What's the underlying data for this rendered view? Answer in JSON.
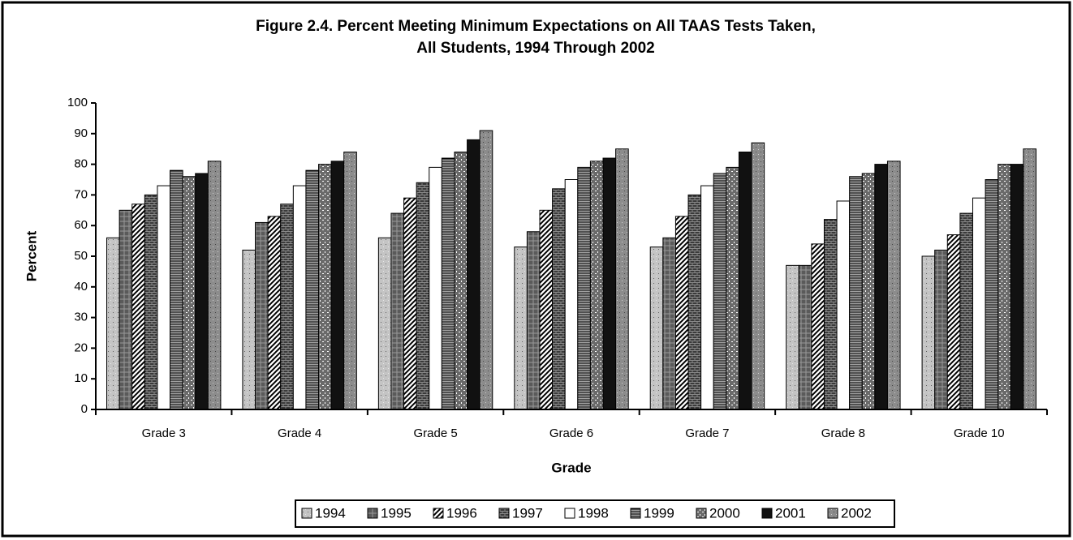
{
  "chart_data": {
    "type": "bar",
    "title": [
      "Figure 2.4. Percent Meeting Minimum Expectations on All TAAS Tests Taken,",
      "All Students, 1994 Through 2002"
    ],
    "x_label": "Grade",
    "y_label": "Percent",
    "categories": [
      "Grade 3",
      "Grade 4",
      "Grade 5",
      "Grade 6",
      "Grade 7",
      "Grade 8",
      "Grade 10"
    ],
    "series": [
      {
        "name": "1994",
        "color": "#c4c4c4",
        "pattern": "dots",
        "values": [
          56,
          52,
          56,
          53,
          53,
          47,
          50
        ]
      },
      {
        "name": "1995",
        "color": "#5a5a5a",
        "pattern": "cross",
        "values": [
          65,
          61,
          64,
          58,
          56,
          47,
          52
        ]
      },
      {
        "name": "1996",
        "color": "#ffffff",
        "pattern": "diagonal",
        "values": [
          67,
          63,
          69,
          65,
          63,
          54,
          57
        ]
      },
      {
        "name": "1997",
        "color": "#3a3a3a",
        "pattern": "brick",
        "values": [
          70,
          67,
          74,
          72,
          70,
          62,
          64
        ]
      },
      {
        "name": "1998",
        "color": "#ffffff",
        "pattern": "none",
        "values": [
          73,
          73,
          79,
          75,
          73,
          68,
          69
        ]
      },
      {
        "name": "1999",
        "color": "#a0a0a0",
        "pattern": "horizontal",
        "values": [
          78,
          78,
          82,
          79,
          77,
          76,
          75
        ]
      },
      {
        "name": "2000",
        "color": "#6a6a6a",
        "pattern": "speckle",
        "values": [
          76,
          80,
          84,
          81,
          79,
          77,
          80
        ]
      },
      {
        "name": "2001",
        "color": "#111111",
        "pattern": "none",
        "values": [
          77,
          81,
          88,
          82,
          84,
          80,
          80
        ]
      },
      {
        "name": "2002",
        "color": "#8c8c8c",
        "pattern": "dots",
        "values": [
          81,
          84,
          91,
          85,
          87,
          81,
          85
        ]
      }
    ],
    "ylim": [
      0,
      100
    ],
    "yticks": [
      0,
      10,
      20,
      30,
      40,
      50,
      60,
      70,
      80,
      90,
      100
    ],
    "grid": false,
    "legend": "bottom"
  }
}
